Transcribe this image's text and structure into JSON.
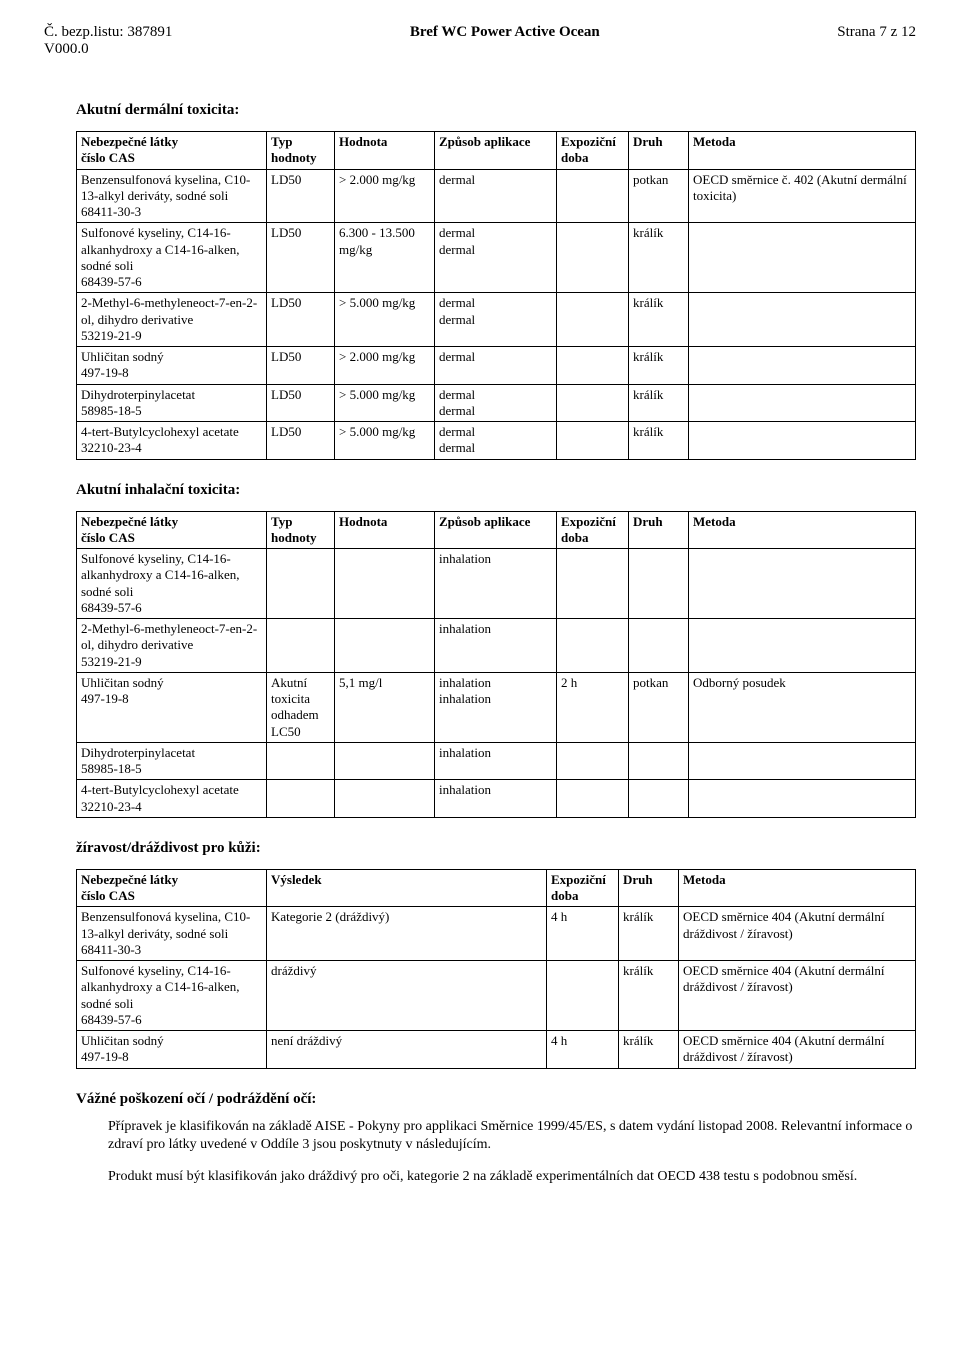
{
  "header": {
    "left_line1": "Č. bezp.listu: 387891",
    "left_line2": "V000.0",
    "center": "Bref WC Power Active Ocean",
    "right": "Strana 7 z 12"
  },
  "sections": {
    "s1_title": "Akutní dermální toxicita:",
    "s2_title": "Akutní inhalační toxicita:",
    "s3_title": "žíravost/dráždivost pro kůži:",
    "s4_title": "Vážné poškození očí / podráždění očí:"
  },
  "tox_headers": {
    "substance": "Nebezpečné látky",
    "cas": "číslo CAS",
    "type": "Typ",
    "type2": "hodnoty",
    "value": "Hodnota",
    "app": "Způsob aplikace",
    "exp": "Expoziční",
    "exp2": "doba",
    "druh": "Druh",
    "method": "Metoda",
    "result": "Výsledek"
  },
  "dermal": [
    {
      "sub": "Benzensulfonová kyselina, C10-13-alkyl deriváty, sodné soli",
      "cas": "68411-30-3",
      "typ": "LD50",
      "val": "> 2.000 mg/kg",
      "app": "dermal",
      "exp": "",
      "druh": "potkan",
      "met": "OECD směrnice č. 402 (Akutní dermální toxicita)"
    },
    {
      "sub": "Sulfonové kyseliny, C14-16-alkanhydroxy a C14-16-alken, sodné soli",
      "cas": "68439-57-6",
      "typ": "LD50",
      "val": "6.300 - 13.500 mg/kg",
      "app": "dermal\ndermal",
      "exp": "",
      "druh": "králík",
      "met": ""
    },
    {
      "sub": "2-Methyl-6-methyleneoct-7-en-2-ol, dihydro derivative",
      "cas": "53219-21-9",
      "typ": "LD50",
      "val": "> 5.000 mg/kg",
      "app": "dermal\ndermal",
      "exp": "",
      "druh": "králík",
      "met": ""
    },
    {
      "sub": "Uhličitan sodný",
      "cas": "497-19-8",
      "typ": "LD50",
      "val": "> 2.000 mg/kg",
      "app": "dermal",
      "exp": "",
      "druh": "králík",
      "met": ""
    },
    {
      "sub": "Dihydroterpinylacetat",
      "cas": "58985-18-5",
      "typ": "LD50",
      "val": "> 5.000 mg/kg",
      "app": "dermal\ndermal",
      "exp": "",
      "druh": "králík",
      "met": ""
    },
    {
      "sub": "4-tert-Butylcyclohexyl acetate",
      "cas": "32210-23-4",
      "typ": "LD50",
      "val": "> 5.000 mg/kg",
      "app": "dermal\ndermal",
      "exp": "",
      "druh": "králík",
      "met": ""
    }
  ],
  "inhalation": [
    {
      "sub": "Sulfonové kyseliny, C14-16-alkanhydroxy a C14-16-alken, sodné soli",
      "cas": "68439-57-6",
      "typ": "",
      "val": "",
      "app": "inhalation",
      "exp": "",
      "druh": "",
      "met": ""
    },
    {
      "sub": "2-Methyl-6-methyleneoct-7-en-2-ol, dihydro derivative",
      "cas": "53219-21-9",
      "typ": "",
      "val": "",
      "app": "inhalation",
      "exp": "",
      "druh": "",
      "met": ""
    },
    {
      "sub": "Uhličitan sodný",
      "cas": "497-19-8",
      "typ": "Akutní toxicita odhadem LC50",
      "val": "5,1 mg/l",
      "app": "inhalation\ninhalation",
      "exp": "2 h",
      "druh": "potkan",
      "met": "Odborný posudek"
    },
    {
      "sub": "Dihydroterpinylacetat",
      "cas": "58985-18-5",
      "typ": "",
      "val": "",
      "app": "inhalation",
      "exp": "",
      "druh": "",
      "met": ""
    },
    {
      "sub": "4-tert-Butylcyclohexyl acetate",
      "cas": "32210-23-4",
      "typ": "",
      "val": "",
      "app": "inhalation",
      "exp": "",
      "druh": "",
      "met": ""
    }
  ],
  "corrosion": [
    {
      "sub": "Benzensulfonová kyselina, C10-13-alkyl deriváty, sodné soli",
      "cas": "68411-30-3",
      "res": "Kategorie 2 (dráždivý)",
      "exp": "4 h",
      "druh": "králík",
      "met": "OECD směrnice 404 (Akutní dermální dráždivost / žíravost)"
    },
    {
      "sub": "Sulfonové kyseliny, C14-16-alkanhydroxy a C14-16-alken, sodné soli",
      "cas": "68439-57-6",
      "res": "dráždivý",
      "exp": "",
      "druh": "králík",
      "met": "OECD směrnice 404 (Akutní dermální dráždivost / žíravost)"
    },
    {
      "sub": "Uhličitan sodný",
      "cas": "497-19-8",
      "res": "není dráždivý",
      "exp": "4 h",
      "druh": "králík",
      "met": "OECD směrnice 404 (Akutní dermální dráždivost / žíravost)"
    }
  ],
  "paragraphs": {
    "p1": "Přípravek je klasifikován na základě AISE - Pokyny pro applikaci Směrnice 1999/45/ES, s datem vydání listopad 2008. Relevantní informace o zdraví pro látky uvedené v Oddíle 3 jsou poskytnuty v následujícím.",
    "p2": "Produkt musí být klasifikován jako dráždivý pro oči, kategorie 2 na základě experimentálních dat OECD 438 testu s podobnou směsí."
  }
}
